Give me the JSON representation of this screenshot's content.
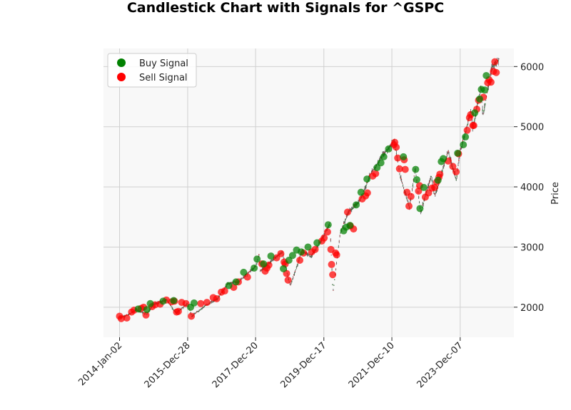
{
  "chart_data": {
    "type": "candlestick",
    "title": "Candlestick Chart with Signals for ^GSPC",
    "xlabel": "",
    "ylabel": "Price",
    "x_ticks": [
      "2014-Jan-02",
      "2015-Dec-28",
      "2017-Dec-20",
      "2019-Dec-17",
      "2021-Dec-10",
      "2023-Dec-07"
    ],
    "y_ticks": [
      2000,
      3000,
      4000,
      5000,
      6000
    ],
    "ylim": [
      1500,
      6300
    ],
    "xlim": [
      "2013-Jul-15",
      "2025-Jul-01"
    ],
    "grid": true,
    "legend_position": "top-left",
    "legend": [
      {
        "label": "Buy Signal",
        "color": "#008000"
      },
      {
        "label": "Sell Signal",
        "color": "#ff0000"
      }
    ],
    "price_series": [
      [
        "2014-01-02",
        1830
      ],
      [
        "2014-04-01",
        1870
      ],
      [
        "2014-07-01",
        1960
      ],
      [
        "2014-10-15",
        1880
      ],
      [
        "2015-01-01",
        2050
      ],
      [
        "2015-05-20",
        2120
      ],
      [
        "2015-08-25",
        1900
      ],
      [
        "2015-12-28",
        2060
      ],
      [
        "2016-02-10",
        1850
      ],
      [
        "2016-06-27",
        2020
      ],
      [
        "2016-11-08",
        2140
      ],
      [
        "2017-03-01",
        2390
      ],
      [
        "2017-06-30",
        2430
      ],
      [
        "2017-12-20",
        2680
      ],
      [
        "2018-01-26",
        2870
      ],
      [
        "2018-02-08",
        2600
      ],
      [
        "2018-06-15",
        2780
      ],
      [
        "2018-10-01",
        2920
      ],
      [
        "2018-12-24",
        2350
      ],
      [
        "2019-04-30",
        2940
      ],
      [
        "2019-08-05",
        2840
      ],
      [
        "2019-12-17",
        3190
      ],
      [
        "2020-02-19",
        3390
      ],
      [
        "2020-03-23",
        2240
      ],
      [
        "2020-06-08",
        3230
      ],
      [
        "2020-09-02",
        3580
      ],
      [
        "2020-12-31",
        3760
      ],
      [
        "2021-04-15",
        4170
      ],
      [
        "2021-08-31",
        4520
      ],
      [
        "2021-12-10",
        4710
      ],
      [
        "2022-01-03",
        4790
      ],
      [
        "2022-03-08",
        4170
      ],
      [
        "2022-06-16",
        3670
      ],
      [
        "2022-08-16",
        4300
      ],
      [
        "2022-10-12",
        3580
      ],
      [
        "2023-02-02",
        4180
      ],
      [
        "2023-03-13",
        3850
      ],
      [
        "2023-07-31",
        4590
      ],
      [
        "2023-10-27",
        4120
      ],
      [
        "2023-12-07",
        4590
      ],
      [
        "2024-03-28",
        5250
      ],
      [
        "2024-04-19",
        4970
      ],
      [
        "2024-07-16",
        5670
      ],
      [
        "2024-08-05",
        5190
      ],
      [
        "2024-11-11",
        6000
      ],
      [
        "2025-01-23",
        6120
      ]
    ],
    "buy_signals": [
      [
        "2014-07-20",
        1970
      ],
      [
        "2014-10-20",
        1960
      ],
      [
        "2014-11-25",
        2060
      ],
      [
        "2015-04-10",
        2100
      ],
      [
        "2015-08-01",
        2110
      ],
      [
        "2016-01-28",
        2000
      ],
      [
        "2016-03-05",
        2070
      ],
      [
        "2017-03-10",
        2360
      ],
      [
        "2017-05-25",
        2420
      ],
      [
        "2017-08-15",
        2580
      ],
      [
        "2017-12-05",
        2650
      ],
      [
        "2018-01-05",
        2800
      ],
      [
        "2018-03-15",
        2720
      ],
      [
        "2018-06-01",
        2850
      ],
      [
        "2018-10-12",
        2640
      ],
      [
        "2018-12-10",
        2780
      ],
      [
        "2019-01-18",
        2860
      ],
      [
        "2019-03-01",
        2950
      ],
      [
        "2019-04-20",
        2920
      ],
      [
        "2019-07-01",
        3000
      ],
      [
        "2019-10-05",
        3070
      ],
      [
        "2020-02-01",
        3370
      ],
      [
        "2020-07-15",
        3270
      ],
      [
        "2020-08-10",
        3330
      ],
      [
        "2020-09-20",
        3360
      ],
      [
        "2020-11-25",
        3700
      ],
      [
        "2021-01-15",
        3910
      ],
      [
        "2021-03-20",
        4130
      ],
      [
        "2021-07-05",
        4320
      ],
      [
        "2021-08-15",
        4400
      ],
      [
        "2021-09-15",
        4500
      ],
      [
        "2021-11-05",
        4630
      ],
      [
        "2022-04-12",
        4500
      ],
      [
        "2022-08-20",
        4290
      ],
      [
        "2022-09-01",
        4120
      ],
      [
        "2022-10-05",
        3640
      ],
      [
        "2022-11-15",
        3990
      ],
      [
        "2023-04-15",
        4110
      ],
      [
        "2023-05-20",
        4420
      ],
      [
        "2023-06-10",
        4470
      ],
      [
        "2023-11-10",
        4560
      ],
      [
        "2024-01-10",
        4700
      ],
      [
        "2024-02-01",
        4830
      ],
      [
        "2024-05-10",
        5230
      ],
      [
        "2024-07-01",
        5460
      ],
      [
        "2024-07-20",
        5620
      ],
      [
        "2024-08-25",
        5610
      ],
      [
        "2024-09-10",
        5850
      ]
    ],
    "sell_signals": [
      [
        "2014-01-02",
        1850
      ],
      [
        "2014-01-20",
        1810
      ],
      [
        "2014-03-20",
        1820
      ],
      [
        "2014-05-10",
        1920
      ],
      [
        "2014-06-05",
        1950
      ],
      [
        "2014-08-20",
        1980
      ],
      [
        "2014-09-15",
        2000
      ],
      [
        "2014-10-10",
        1870
      ],
      [
        "2014-12-15",
        2010
      ],
      [
        "2015-01-15",
        2040
      ],
      [
        "2015-03-10",
        2050
      ],
      [
        "2015-05-15",
        2120
      ],
      [
        "2015-07-10",
        2090
      ],
      [
        "2015-08-10",
        2100
      ],
      [
        "2015-09-01",
        1920
      ],
      [
        "2015-09-20",
        1930
      ],
      [
        "2015-10-25",
        2080
      ],
      [
        "2015-12-10",
        2060
      ],
      [
        "2016-02-05",
        1850
      ],
      [
        "2016-05-15",
        2060
      ],
      [
        "2016-07-20",
        2080
      ],
      [
        "2016-09-25",
        2160
      ],
      [
        "2016-11-01",
        2140
      ],
      [
        "2016-12-20",
        2250
      ],
      [
        "2017-01-25",
        2270
      ],
      [
        "2017-05-01",
        2330
      ],
      [
        "2017-06-20",
        2420
      ],
      [
        "2017-09-25",
        2500
      ],
      [
        "2018-02-25",
        2720
      ],
      [
        "2018-04-01",
        2600
      ],
      [
        "2018-04-20",
        2650
      ],
      [
        "2018-05-10",
        2700
      ],
      [
        "2018-08-01",
        2820
      ],
      [
        "2018-09-15",
        2890
      ],
      [
        "2018-10-20",
        2750
      ],
      [
        "2018-11-01",
        2720
      ],
      [
        "2018-11-15",
        2560
      ],
      [
        "2018-12-01",
        2450
      ],
      [
        "2019-04-05",
        2780
      ],
      [
        "2019-05-15",
        2900
      ],
      [
        "2019-08-10",
        2920
      ],
      [
        "2019-09-15",
        2960
      ],
      [
        "2019-11-25",
        3100
      ],
      [
        "2019-12-20",
        3150
      ],
      [
        "2020-01-25",
        3250
      ],
      [
        "2020-03-01",
        2960
      ],
      [
        "2020-03-08",
        2710
      ],
      [
        "2020-03-20",
        2540
      ],
      [
        "2020-04-20",
        2900
      ],
      [
        "2020-05-01",
        2870
      ],
      [
        "2020-08-25",
        3580
      ],
      [
        "2020-09-25",
        3350
      ],
      [
        "2020-10-28",
        3300
      ],
      [
        "2021-01-28",
        3800
      ],
      [
        "2021-03-05",
        3850
      ],
      [
        "2021-03-25",
        3900
      ],
      [
        "2021-05-20",
        4180
      ],
      [
        "2021-06-20",
        4220
      ],
      [
        "2022-01-01",
        4700
      ],
      [
        "2022-01-10",
        4740
      ],
      [
        "2022-01-25",
        4660
      ],
      [
        "2022-02-10",
        4480
      ],
      [
        "2022-03-01",
        4300
      ],
      [
        "2022-04-20",
        4450
      ],
      [
        "2022-05-01",
        4290
      ],
      [
        "2022-05-20",
        3910
      ],
      [
        "2022-06-10",
        3680
      ],
      [
        "2022-07-01",
        3840
      ],
      [
        "2022-09-20",
        3930
      ],
      [
        "2022-10-01",
        4020
      ],
      [
        "2022-12-01",
        3830
      ],
      [
        "2023-01-05",
        3900
      ],
      [
        "2023-02-10",
        3980
      ],
      [
        "2023-03-10",
        3990
      ],
      [
        "2023-04-01",
        4080
      ],
      [
        "2023-04-25",
        4160
      ],
      [
        "2023-05-05",
        4210
      ],
      [
        "2023-08-01",
        4430
      ],
      [
        "2023-09-20",
        4340
      ],
      [
        "2023-10-25",
        4250
      ],
      [
        "2023-11-20",
        4550
      ],
      [
        "2024-02-20",
        4940
      ],
      [
        "2024-03-15",
        5150
      ],
      [
        "2024-03-28",
        5200
      ],
      [
        "2024-04-20",
        5020
      ],
      [
        "2024-04-30",
        5020
      ],
      [
        "2024-06-01",
        5290
      ],
      [
        "2024-06-20",
        5440
      ],
      [
        "2024-08-10",
        5490
      ],
      [
        "2024-09-25",
        5730
      ],
      [
        "2024-10-10",
        5780
      ],
      [
        "2024-10-30",
        5740
      ],
      [
        "2024-11-25",
        5920
      ],
      [
        "2024-12-10",
        6080
      ],
      [
        "2024-12-25",
        5900
      ]
    ]
  }
}
